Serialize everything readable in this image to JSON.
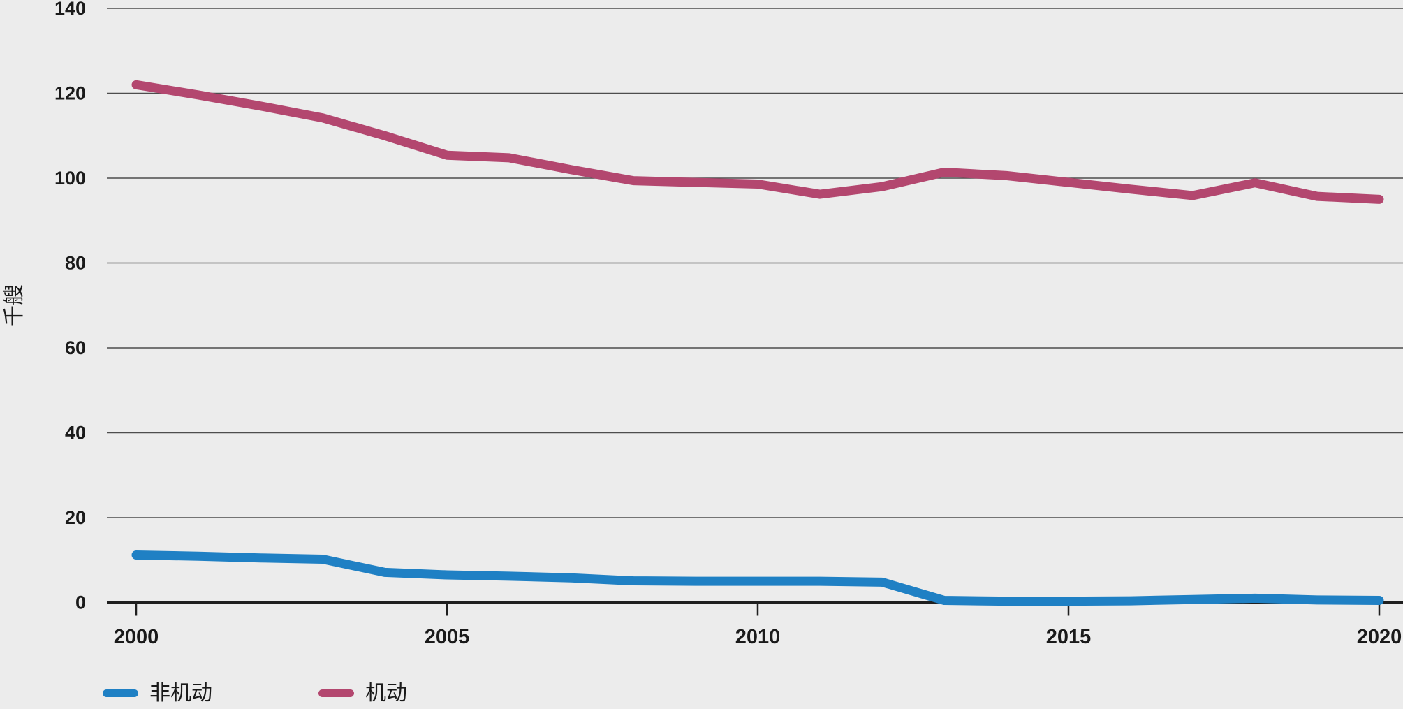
{
  "chart_data": {
    "type": "line",
    "title": "",
    "xlabel": "",
    "ylabel": "千艘",
    "x": [
      2000,
      2001,
      2002,
      2003,
      2004,
      2005,
      2006,
      2007,
      2008,
      2009,
      2010,
      2011,
      2012,
      2013,
      2014,
      2015,
      2016,
      2017,
      2018,
      2019,
      2020
    ],
    "series": [
      {
        "name": "非机动",
        "color": "#1f80c4",
        "values": [
          11.2,
          10.9,
          10.5,
          10.2,
          7.1,
          6.5,
          6.2,
          5.8,
          5.1,
          5.0,
          5.0,
          5.0,
          4.8,
          0.5,
          0.3,
          0.3,
          0.4,
          0.7,
          1.0,
          0.6,
          0.5
        ]
      },
      {
        "name": "机动",
        "color": "#b3476f",
        "values": [
          122.0,
          119.6,
          117.0,
          114.2,
          110.0,
          105.4,
          104.8,
          102.0,
          99.4,
          99.0,
          98.6,
          96.2,
          98.0,
          101.4,
          100.6,
          99.0,
          97.4,
          95.9,
          98.9,
          95.7,
          95.0
        ]
      }
    ],
    "xlim": [
      2000,
      2020
    ],
    "ylim": [
      0,
      140
    ],
    "x_ticks": [
      "2000",
      "2005",
      "2010",
      "2015",
      "2020"
    ],
    "x_tick_years": [
      2000,
      2005,
      2010,
      2015,
      2020
    ],
    "y_ticks": [
      0,
      20,
      40,
      60,
      80,
      100,
      120,
      140
    ],
    "grid": true,
    "legend_position": "bottom-left"
  },
  "legend": {
    "items": [
      {
        "label": "非机动",
        "color": "#1f80c4"
      },
      {
        "label": "机动",
        "color": "#b3476f"
      }
    ]
  },
  "style": {
    "background": "#ececec",
    "grid_color": "#4d4d4d",
    "axis_color": "#1f1f1f",
    "text_color": "#1a1a1a"
  }
}
